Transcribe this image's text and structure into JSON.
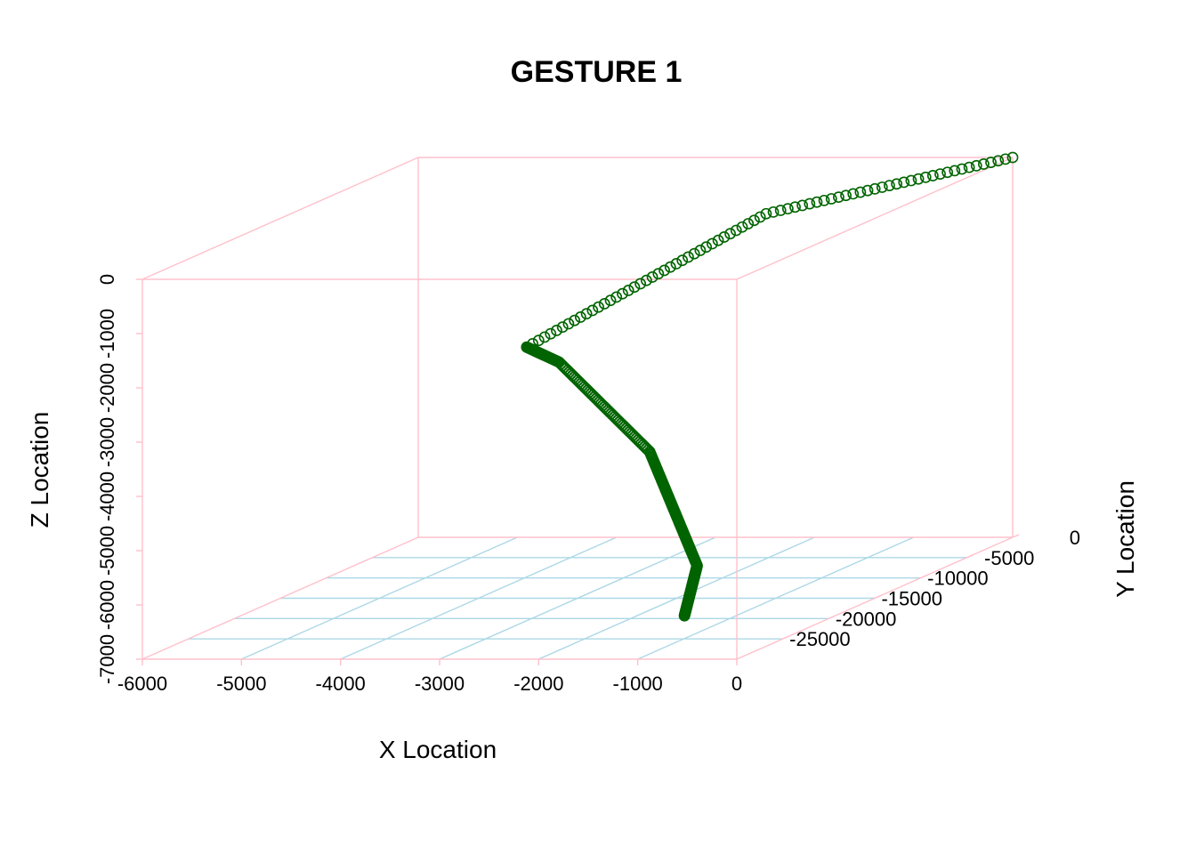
{
  "chart_data": {
    "type": "scatter3d",
    "title": "GESTURE 1",
    "xlabel": "X Location",
    "ylabel": "Y Location",
    "zlabel": "Z Location",
    "xlim": [
      -6000,
      0
    ],
    "ylim": [
      -30000,
      0
    ],
    "zlim": [
      -7000,
      0
    ],
    "x_ticks": [
      -6000,
      -5000,
      -4000,
      -3000,
      -2000,
      -1000,
      0
    ],
    "y_ticks": [
      -25000,
      -20000,
      -15000,
      -10000,
      -5000,
      0
    ],
    "z_ticks": [
      -7000,
      -6000,
      -5000,
      -4000,
      -3000,
      -2000,
      -1000,
      0
    ],
    "x_tick_labels": [
      "-6000",
      "-5000",
      "-4000",
      "-3000",
      "-2000",
      "-1000",
      "0"
    ],
    "y_tick_labels": [
      "-25000",
      "-20000",
      "-15000",
      "-10000",
      "-5000",
      "0"
    ],
    "z_tick_labels": [
      "-7000",
      "-6000",
      "-5000",
      "-4000",
      "-3000",
      "-2000",
      "-1000",
      "0"
    ],
    "colors": {
      "box": "#ffc0cb",
      "grid": "#add8e6",
      "points": "#006400"
    },
    "grid": true,
    "keypoints": [
      {
        "x": -900,
        "y": -26000,
        "z": -6500
      },
      {
        "x": -1050,
        "y": -23000,
        "z": -5800
      },
      {
        "x": -1900,
        "y": -19000,
        "z": -4000
      },
      {
        "x": -3000,
        "y": -17000,
        "z": -2500
      },
      {
        "x": -3300,
        "y": -17300,
        "z": -2200
      },
      {
        "x": -1700,
        "y": -8500,
        "z": -400
      },
      {
        "x": 0,
        "y": 0,
        "z": 0
      }
    ],
    "n_points": 360
  }
}
